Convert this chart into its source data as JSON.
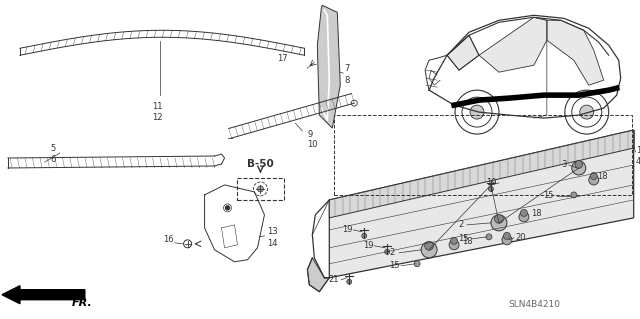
{
  "bg_color": "#ffffff",
  "diagram_id": "SLN4B4210",
  "fig_width": 6.4,
  "fig_height": 3.19,
  "lc": "#333333",
  "tc": "#333333",
  "fs": 6.0
}
